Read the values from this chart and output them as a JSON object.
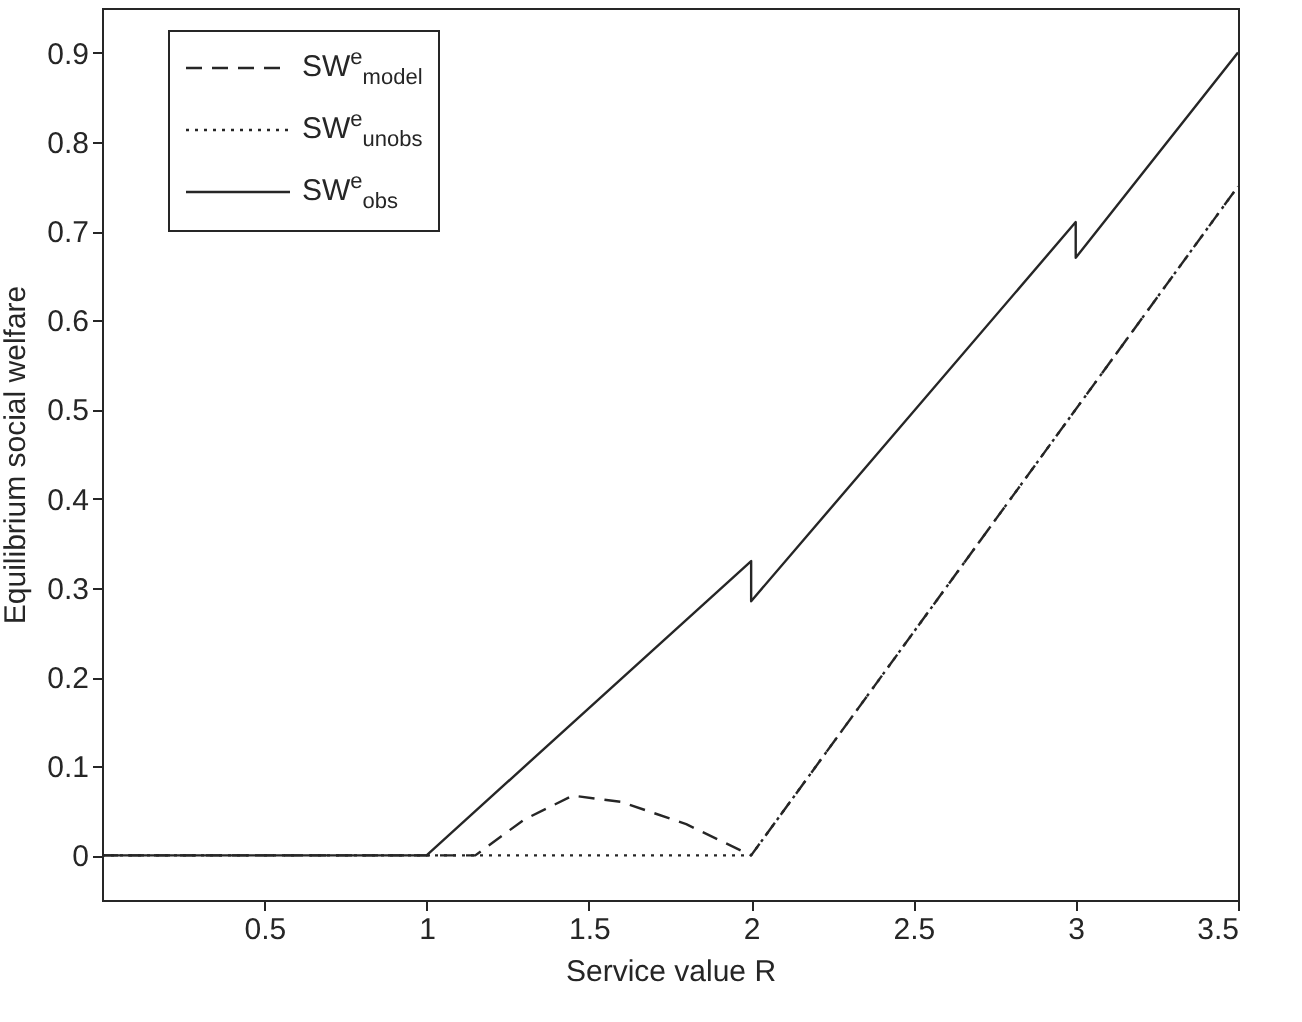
{
  "chart_data": {
    "type": "line",
    "xlabel": "Service value R",
    "ylabel": "Equilibrium social welfare",
    "xlim": [
      0,
      3.5
    ],
    "ylim": [
      -0.05,
      0.95
    ],
    "xticks": [
      0.5,
      1,
      1.5,
      2,
      2.5,
      3,
      3.5
    ],
    "yticks": [
      0,
      0.1,
      0.2,
      0.3,
      0.4,
      0.5,
      0.6,
      0.7,
      0.8,
      0.9
    ],
    "legend": "top left",
    "grid": false,
    "series": [
      {
        "name": "SW$^{e}$$_{model}$",
        "color": "#262626",
        "line_style": "dashed",
        "x": [
          0,
          1.15,
          1.3,
          1.45,
          1.6,
          1.8,
          2,
          3.5
        ],
        "values": [
          0,
          0,
          0.04,
          0.067,
          0.06,
          0.035,
          0,
          0.75
        ]
      },
      {
        "name": "SW$^{e}$$_{unobs}$",
        "color": "#262626",
        "line_style": "dotted",
        "x": [
          0,
          2,
          3.5
        ],
        "values": [
          0,
          0,
          0.75
        ]
      },
      {
        "name": "SW$^{e}$$_{obs}$",
        "color": "#262626",
        "line_style": "solid",
        "x": [
          0,
          1,
          2,
          2,
          3,
          3,
          3.5
        ],
        "values": [
          0,
          0,
          0.33,
          0.285,
          0.71,
          0.67,
          0.9
        ]
      }
    ]
  }
}
